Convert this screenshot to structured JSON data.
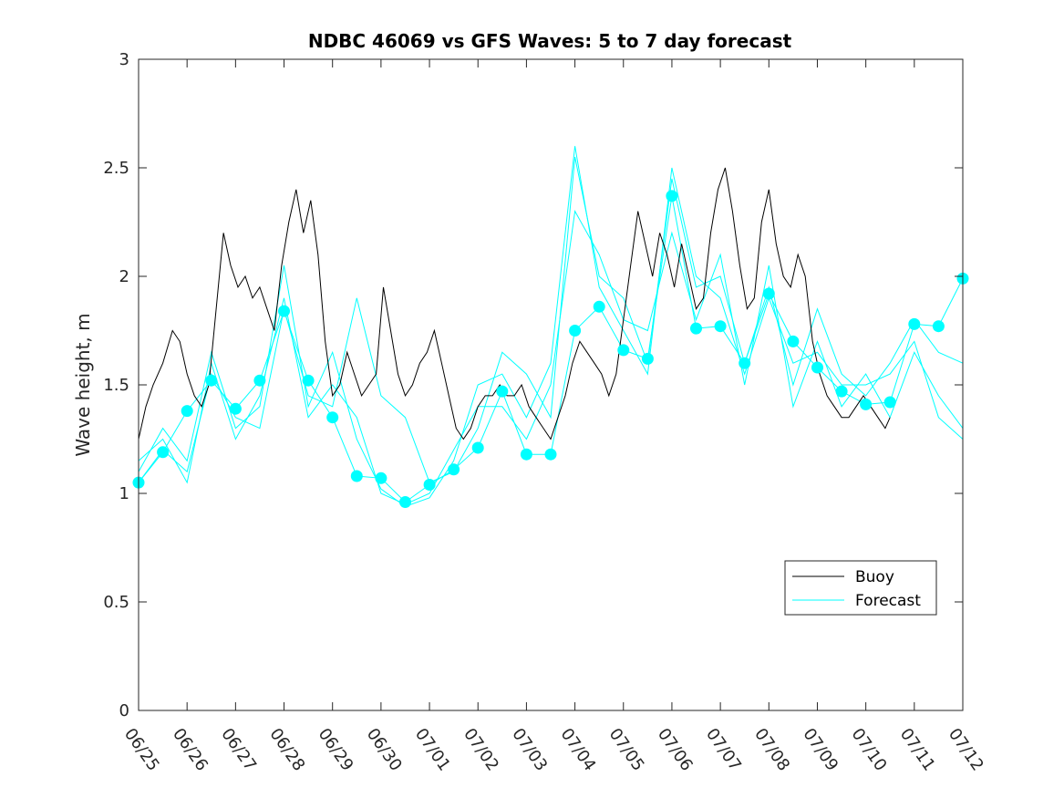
{
  "chart_data": {
    "type": "line",
    "title": "NDBC 46069 vs GFS Waves: 5 to 7 day forecast",
    "xlabel": "",
    "ylabel": "Wave height, m",
    "ylim": [
      0,
      3
    ],
    "yticks": [
      0,
      0.5,
      1,
      1.5,
      2,
      2.5,
      3
    ],
    "ytick_labels": [
      "0",
      "0.5",
      "1",
      "1.5",
      "2",
      "2.5",
      "3"
    ],
    "xlim_days": [
      0,
      17
    ],
    "xticks": [
      "06/25",
      "06/26",
      "06/27",
      "06/28",
      "06/29",
      "06/30",
      "07/01",
      "07/02",
      "07/03",
      "07/04",
      "07/05",
      "07/06",
      "07/07",
      "07/08",
      "07/09",
      "07/10",
      "07/11",
      "07/12"
    ],
    "grid": false,
    "legend": {
      "placement": "bottom-right",
      "entries": [
        "Buoy",
        "Forecast"
      ]
    },
    "colors": {
      "buoy": "#000000",
      "forecast": "#00ffff"
    },
    "series": [
      {
        "name": "Buoy",
        "x_days": [
          0,
          0.15,
          0.3,
          0.5,
          0.7,
          0.85,
          1.0,
          1.15,
          1.3,
          1.45,
          1.6,
          1.75,
          1.9,
          2.05,
          2.2,
          2.35,
          2.5,
          2.65,
          2.8,
          2.95,
          3.1,
          3.25,
          3.4,
          3.55,
          3.7,
          3.85,
          4.0,
          4.15,
          4.3,
          4.45,
          4.6,
          4.75,
          4.9,
          5.05,
          5.2,
          5.35,
          5.5,
          5.65,
          5.8,
          5.95,
          6.1,
          6.25,
          6.4,
          6.55,
          6.7,
          6.85,
          7.0,
          7.15,
          7.3,
          7.45,
          7.6,
          7.75,
          7.9,
          8.05,
          8.2,
          8.35,
          8.5,
          8.65,
          8.8,
          8.95,
          9.1,
          9.25,
          9.4,
          9.55,
          9.7,
          9.85,
          10.0,
          10.15,
          10.3,
          10.45,
          10.6,
          10.75,
          10.9,
          11.05,
          11.2,
          11.35,
          11.5,
          11.65,
          11.8,
          11.95,
          12.1,
          12.25,
          12.4,
          12.55,
          12.7,
          12.85,
          13.0,
          13.15,
          13.3,
          13.45,
          13.6,
          13.75,
          13.9,
          14.05,
          14.2,
          14.35,
          14.5,
          14.65,
          14.8,
          14.95,
          15.1,
          15.25,
          15.4,
          15.5
        ],
        "values": [
          1.25,
          1.4,
          1.5,
          1.6,
          1.75,
          1.7,
          1.55,
          1.45,
          1.4,
          1.5,
          1.85,
          2.2,
          2.05,
          1.95,
          2.0,
          1.9,
          1.95,
          1.85,
          1.75,
          2.05,
          2.25,
          2.4,
          2.2,
          2.35,
          2.1,
          1.7,
          1.45,
          1.5,
          1.65,
          1.55,
          1.45,
          1.5,
          1.55,
          1.95,
          1.75,
          1.55,
          1.45,
          1.5,
          1.6,
          1.65,
          1.75,
          1.6,
          1.45,
          1.3,
          1.25,
          1.3,
          1.4,
          1.45,
          1.45,
          1.5,
          1.45,
          1.45,
          1.5,
          1.4,
          1.35,
          1.3,
          1.25,
          1.35,
          1.45,
          1.6,
          1.7,
          1.65,
          1.6,
          1.55,
          1.45,
          1.55,
          1.8,
          2.05,
          2.3,
          2.15,
          2.0,
          2.2,
          2.1,
          1.95,
          2.15,
          2.0,
          1.85,
          1.9,
          2.2,
          2.4,
          2.5,
          2.3,
          2.05,
          1.85,
          1.9,
          2.25,
          2.4,
          2.15,
          2.0,
          1.95,
          2.1,
          2.0,
          1.7,
          1.55,
          1.45,
          1.4,
          1.35,
          1.35,
          1.4,
          1.45,
          1.4,
          1.35,
          1.3,
          1.35
        ]
      },
      {
        "name": "Forecast",
        "x_days": [
          0,
          0.5,
          1.0,
          1.5,
          2.0,
          2.5,
          3.0,
          3.5,
          4.0,
          4.5,
          5.0,
          5.5,
          6.0,
          6.5,
          7.0,
          7.5,
          8.0,
          8.5,
          9.0,
          9.5,
          10.0,
          10.5,
          11.0,
          11.5,
          12.0,
          12.5,
          13.0,
          13.5,
          14.0,
          14.5,
          15.0,
          15.5,
          16.0,
          16.5,
          17.0
        ],
        "values": [
          1.05,
          1.19,
          1.38,
          1.52,
          1.39,
          1.52,
          1.84,
          1.52,
          1.35,
          1.08,
          1.07,
          0.96,
          1.04,
          1.11,
          1.21,
          1.47,
          1.18,
          1.18,
          1.75,
          1.86,
          1.66,
          1.62,
          2.37,
          1.76,
          1.77,
          1.6,
          1.92,
          1.7,
          1.58,
          1.47,
          1.41,
          1.42,
          1.78,
          1.77,
          1.99
        ]
      },
      {
        "name": "Forecast",
        "x_days": [
          0,
          0.5,
          1.0,
          1.5,
          2.0,
          2.5,
          3.0,
          3.5,
          4.0,
          4.5,
          5.0,
          5.5,
          6.0,
          6.5,
          7.0,
          7.5,
          8.0,
          8.5,
          9.0,
          9.5,
          10.0,
          10.5,
          11.0,
          11.5,
          12.0,
          12.5,
          13.0,
          13.5,
          14.0,
          14.5,
          15.0,
          15.5,
          16.0,
          16.5,
          17.0
        ],
        "values": [
          1.05,
          1.2,
          1.1,
          1.55,
          1.35,
          1.3,
          1.85,
          1.45,
          1.4,
          1.9,
          1.45,
          1.35,
          1.05,
          1.1,
          1.3,
          1.65,
          1.55,
          1.35,
          2.55,
          2.0,
          1.9,
          1.6,
          2.45,
          1.95,
          2.0,
          1.6,
          1.95,
          1.5,
          1.85,
          1.55,
          1.45,
          1.6,
          1.8,
          1.65,
          1.6
        ]
      },
      {
        "name": "Forecast",
        "x_days": [
          0,
          0.5,
          1.0,
          1.5,
          2.0,
          2.5,
          3.0,
          3.5,
          4.0,
          4.5,
          5.0,
          5.5,
          6.0,
          6.5,
          7.0,
          7.5,
          8.0,
          8.5,
          9.0,
          9.5,
          10.0,
          10.5,
          11.0,
          11.5,
          12.0,
          12.5,
          13.0,
          13.5,
          14.0,
          14.5,
          15.0,
          15.5,
          16.0,
          16.5,
          17.0
        ],
        "values": [
          1.15,
          1.25,
          1.05,
          1.6,
          1.25,
          1.45,
          1.9,
          1.35,
          1.5,
          1.35,
          1.0,
          0.95,
          1.0,
          1.2,
          1.4,
          1.4,
          1.25,
          1.5,
          2.3,
          2.1,
          1.8,
          1.75,
          2.2,
          1.8,
          2.1,
          1.5,
          2.05,
          1.4,
          1.7,
          1.4,
          1.55,
          1.35,
          1.65,
          1.45,
          1.3
        ]
      },
      {
        "name": "Forecast",
        "x_days": [
          0,
          0.5,
          1.0,
          1.5,
          2.0,
          2.5,
          3.0,
          3.5,
          4.0,
          4.5,
          5.0,
          5.5,
          6.0,
          6.5,
          7.0,
          7.5,
          8.0,
          8.5,
          9.0,
          9.5,
          10.0,
          10.5,
          11.0,
          11.5,
          12.0,
          12.5,
          13.0,
          13.5,
          14.0,
          14.5,
          15.0,
          15.5,
          16.0,
          16.5,
          17.0
        ],
        "values": [
          1.1,
          1.3,
          1.15,
          1.65,
          1.3,
          1.4,
          2.05,
          1.4,
          1.65,
          1.25,
          1.02,
          0.94,
          0.98,
          1.15,
          1.5,
          1.55,
          1.35,
          1.6,
          2.6,
          1.95,
          1.75,
          1.55,
          2.5,
          2.0,
          1.9,
          1.55,
          1.9,
          1.6,
          1.65,
          1.5,
          1.5,
          1.55,
          1.7,
          1.35,
          1.25
        ]
      }
    ]
  }
}
